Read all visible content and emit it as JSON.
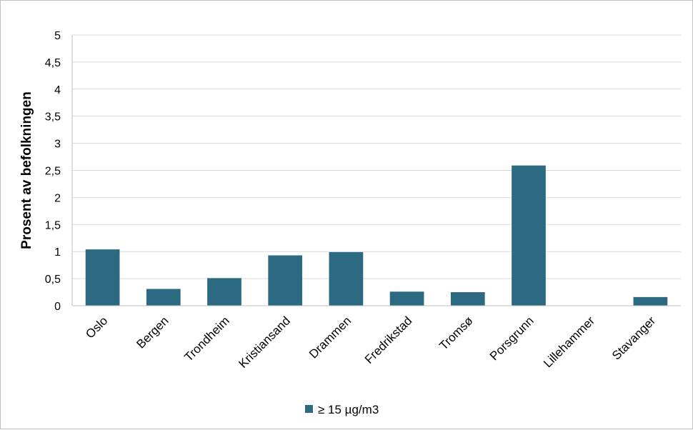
{
  "chart_data": {
    "type": "bar",
    "title": "",
    "xlabel": "",
    "ylabel": "Prosent av befolkningen",
    "ylim": [
      0,
      5
    ],
    "ytick_step": 0.5,
    "ytick_labels": [
      "0",
      "0,5",
      "1",
      "1,5",
      "2",
      "2,5",
      "3",
      "3,5",
      "4",
      "4,5",
      "5"
    ],
    "grid": true,
    "legend_position": "bottom",
    "categories": [
      "Oslo",
      "Bergen",
      "Trondheim",
      "Kristiansand",
      "Drammen",
      "Fredrikstad",
      "Tromsø",
      "Porsgrunn",
      "Lillehammer",
      "Stavanger"
    ],
    "series": [
      {
        "name": "≥ 15 µg/m3",
        "color": "#2c6a82",
        "values": [
          1.04,
          0.31,
          0.51,
          0.93,
          0.99,
          0.26,
          0.25,
          2.59,
          0,
          0.16
        ]
      }
    ]
  }
}
